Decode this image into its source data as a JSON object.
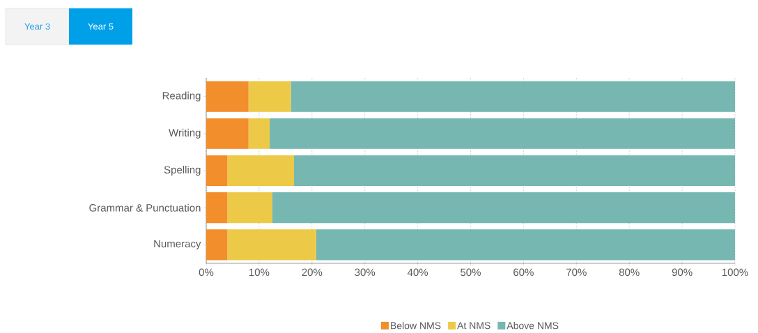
{
  "chart_data": {
    "type": "bar",
    "orientation": "horizontal",
    "stacked": true,
    "categories": [
      "Reading",
      "Writing",
      "Spelling",
      "Grammar & Punctuation",
      "Numeracy"
    ],
    "series": [
      {
        "name": "Below NMS",
        "color": "#f28e2b",
        "values": [
          8,
          8,
          4,
          4,
          4
        ]
      },
      {
        "name": "At NMS",
        "color": "#edc948",
        "values": [
          8,
          4,
          12.6,
          8.5,
          16.8
        ]
      },
      {
        "name": "Above NMS",
        "color": "#76b7b2",
        "values": [
          84,
          88,
          83.4,
          87.5,
          79.2
        ]
      }
    ],
    "xlim": [
      0,
      100
    ],
    "xticks": [
      {
        "value": 0,
        "label": "0%"
      },
      {
        "value": 10,
        "label": "10%"
      },
      {
        "value": 20,
        "label": "20%"
      },
      {
        "value": 30,
        "label": "30%"
      },
      {
        "value": 40,
        "label": "40%"
      },
      {
        "value": 50,
        "label": "50%"
      },
      {
        "value": 60,
        "label": "60%"
      },
      {
        "value": 70,
        "label": "70%"
      },
      {
        "value": 80,
        "label": "80%"
      },
      {
        "value": 90,
        "label": "90%"
      },
      {
        "value": 100,
        "label": "100%"
      }
    ],
    "grid": "x",
    "legend": "bottom",
    "annotations": [
      "Year 3",
      "Year 5"
    ]
  }
}
